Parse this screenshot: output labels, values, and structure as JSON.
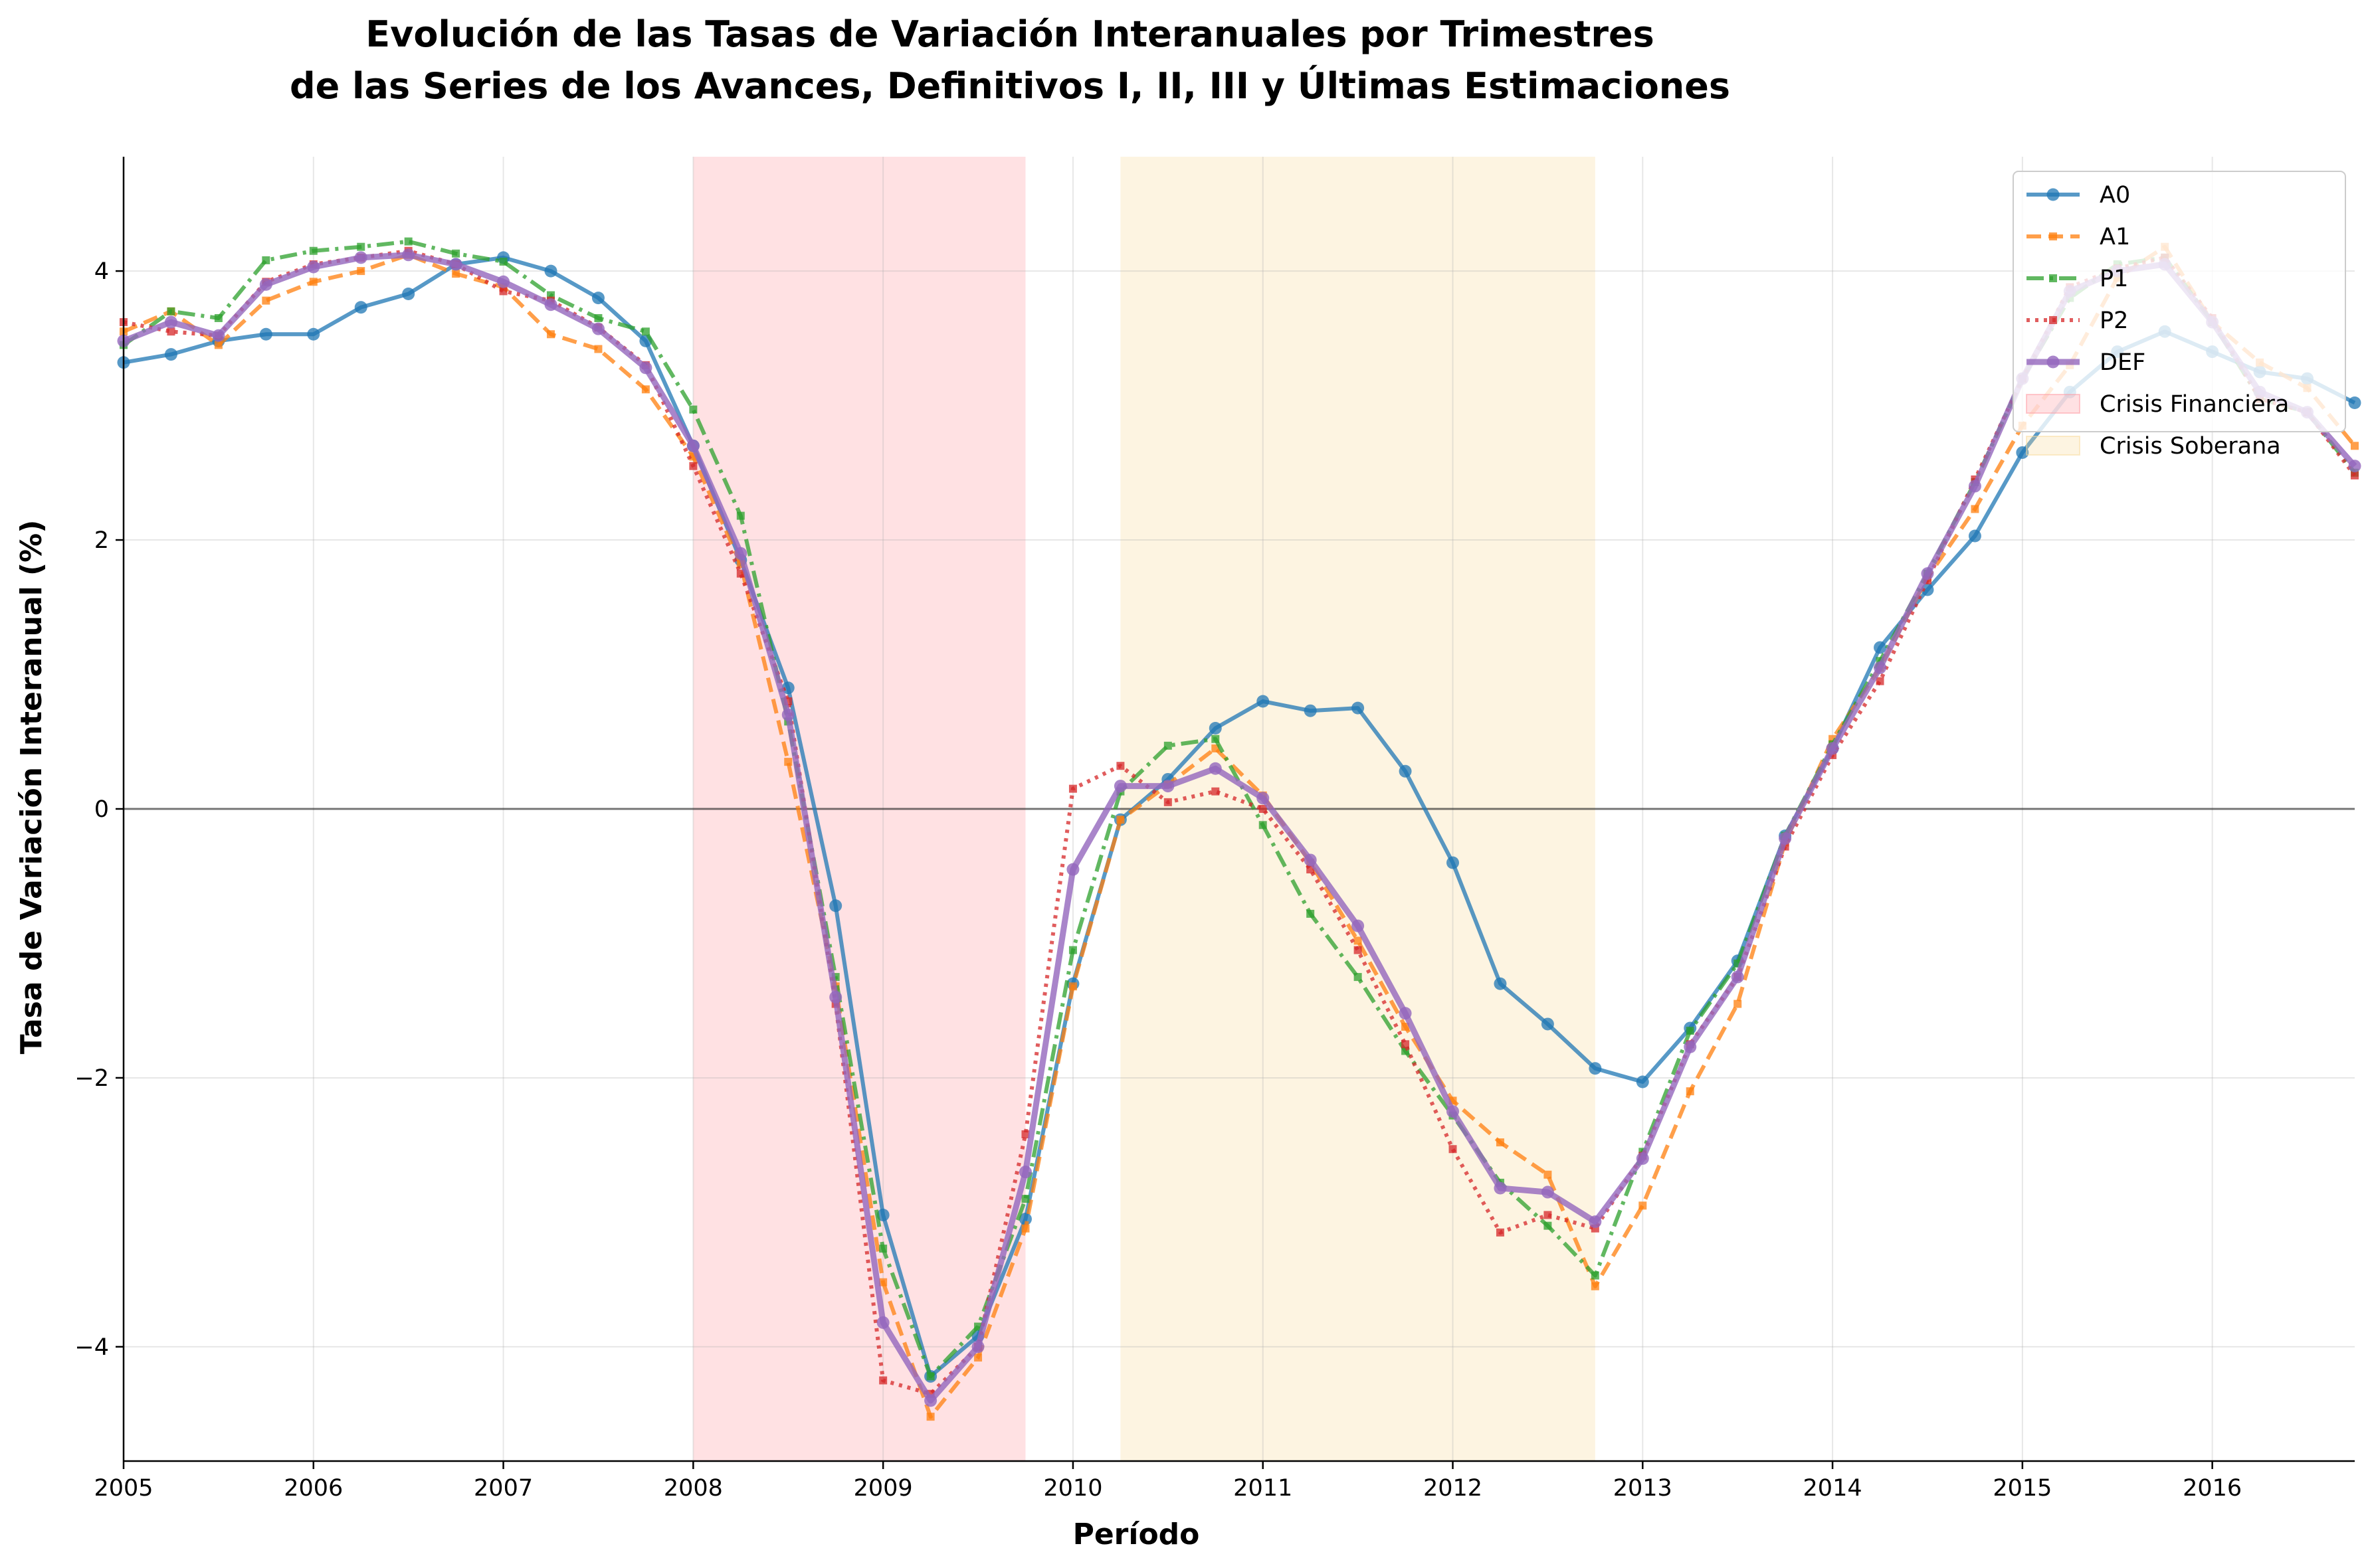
{
  "chart_data": {
    "type": "line",
    "title": "Evolución de las Tasas de Variación Interanuales por Trimestres\nde las Series de los Avances, Definitivos I, II, III y Últimas Estimaciones",
    "xlabel": "Período",
    "ylabel": "Tasa de Variación Interanual (%)",
    "xlim": [
      2005.0,
      2016.75
    ],
    "ylim": [
      -4.85,
      4.85
    ],
    "x_ticks": [
      "2005",
      "2006",
      "2007",
      "2008",
      "2009",
      "2010",
      "2011",
      "2012",
      "2013",
      "2014",
      "2015",
      "2016"
    ],
    "y_ticks": [
      4,
      2,
      0,
      -2,
      -4
    ],
    "y_tick_labels": [
      "4",
      "2",
      "0",
      "−2",
      "−4"
    ],
    "grid": true,
    "legend_position": "top-right",
    "reference_line": 0,
    "x": [
      2005.0,
      2005.25,
      2005.5,
      2005.75,
      2006.0,
      2006.25,
      2006.5,
      2006.75,
      2007.0,
      2007.25,
      2007.5,
      2007.75,
      2008.0,
      2008.25,
      2008.5,
      2008.75,
      2009.0,
      2009.25,
      2009.5,
      2009.75,
      2010.0,
      2010.25,
      2010.5,
      2010.75,
      2011.0,
      2011.25,
      2011.5,
      2011.75,
      2012.0,
      2012.25,
      2012.5,
      2012.75,
      2013.0,
      2013.25,
      2013.5,
      2013.75,
      2014.0,
      2014.25,
      2014.5,
      2014.75,
      2015.0,
      2015.25,
      2015.5,
      2015.75,
      2016.0,
      2016.25,
      2016.5,
      2016.75
    ],
    "series": [
      {
        "name": "A0",
        "color": "#1f77b4",
        "dash": "",
        "marker": "circle",
        "width": 6,
        "opacity": 0.75,
        "values": [
          3.32,
          3.38,
          3.48,
          3.53,
          3.53,
          3.73,
          3.83,
          4.05,
          4.1,
          4.0,
          3.8,
          3.48,
          2.7,
          1.85,
          0.9,
          -0.72,
          -3.02,
          -4.22,
          -3.92,
          -3.05,
          -1.3,
          -0.08,
          0.22,
          0.6,
          0.8,
          0.73,
          0.75,
          0.28,
          -0.4,
          -1.3,
          -1.6,
          -1.93,
          -2.03,
          -1.63,
          -1.13,
          -0.2,
          0.45,
          1.2,
          1.63,
          2.03,
          2.65,
          3.1,
          3.4,
          3.55,
          3.4,
          3.25,
          3.2,
          3.02
        ]
      },
      {
        "name": "A1",
        "color": "#ff7f0e",
        "dash": "22,11",
        "marker": "square",
        "width": 6,
        "opacity": 0.75,
        "values": [
          3.55,
          3.7,
          3.45,
          3.78,
          3.92,
          4.0,
          4.12,
          3.98,
          3.88,
          3.53,
          3.42,
          3.12,
          2.62,
          1.82,
          0.35,
          -1.32,
          -3.52,
          -4.52,
          -4.08,
          -3.12,
          -1.32,
          -0.08,
          0.18,
          0.45,
          0.1,
          -0.4,
          -0.98,
          -1.62,
          -2.17,
          -2.48,
          -2.72,
          -3.55,
          -2.95,
          -2.1,
          -1.45,
          -0.25,
          0.52,
          1.05,
          1.72,
          2.23,
          2.85,
          3.3,
          3.95,
          4.18,
          3.62,
          3.32,
          3.13,
          2.7
        ]
      },
      {
        "name": "P1",
        "color": "#2ca02c",
        "dash": "26,9,5,9",
        "marker": "square",
        "width": 6,
        "opacity": 0.75,
        "values": [
          3.45,
          3.7,
          3.65,
          4.08,
          4.15,
          4.18,
          4.22,
          4.13,
          4.07,
          3.82,
          3.65,
          3.55,
          2.97,
          2.18,
          0.65,
          -1.25,
          -3.27,
          -4.22,
          -3.85,
          -2.9,
          -1.05,
          0.13,
          0.47,
          0.52,
          -0.12,
          -0.78,
          -1.25,
          -1.8,
          -2.28,
          -2.78,
          -3.1,
          -3.47,
          -2.55,
          -1.65,
          -1.15,
          -0.2,
          0.48,
          1.1,
          1.75,
          2.43,
          3.2,
          3.8,
          4.05,
          4.1,
          3.62,
          3.05,
          2.95,
          2.5
        ]
      },
      {
        "name": "P2",
        "color": "#d62728",
        "dash": "5,8",
        "marker": "square",
        "width": 6,
        "opacity": 0.75,
        "values": [
          3.62,
          3.55,
          3.52,
          3.92,
          4.05,
          4.1,
          4.15,
          4.05,
          3.85,
          3.78,
          3.58,
          3.3,
          2.55,
          1.75,
          0.8,
          -1.45,
          -4.25,
          -4.35,
          -4.0,
          -2.42,
          0.15,
          0.32,
          0.05,
          0.13,
          0.0,
          -0.45,
          -1.05,
          -1.75,
          -2.53,
          -3.15,
          -3.02,
          -3.12,
          -2.58,
          -1.75,
          -1.25,
          -0.28,
          0.4,
          0.95,
          1.7,
          2.45,
          3.2,
          3.88,
          4.02,
          4.1,
          3.65,
          3.05,
          2.95,
          2.48
        ]
      },
      {
        "name": "DEF",
        "color": "#9467bd",
        "dash": "",
        "marker": "circle",
        "width": 9,
        "opacity": 0.8,
        "values": [
          3.48,
          3.62,
          3.52,
          3.9,
          4.03,
          4.1,
          4.12,
          4.05,
          3.92,
          3.75,
          3.57,
          3.28,
          2.7,
          1.9,
          0.7,
          -1.4,
          -3.82,
          -4.4,
          -4.0,
          -2.7,
          -0.45,
          0.17,
          0.17,
          0.3,
          0.08,
          -0.38,
          -0.87,
          -1.52,
          -2.25,
          -2.82,
          -2.85,
          -3.07,
          -2.6,
          -1.77,
          -1.25,
          -0.22,
          0.45,
          1.05,
          1.75,
          2.4,
          3.2,
          3.85,
          4.0,
          4.05,
          3.62,
          3.1,
          2.95,
          2.55
        ]
      }
    ],
    "shaded_regions": [
      {
        "name": "Crisis Financiera",
        "from": 2008.0,
        "to": 2009.75,
        "color": "#ff9aa2"
      },
      {
        "name": "Crisis Soberana",
        "from": 2010.25,
        "to": 2012.75,
        "color": "#f9d99a"
      }
    ],
    "legend_entries": [
      "A0",
      "A1",
      "P1",
      "P2",
      "DEF",
      "Crisis Financiera",
      "Crisis Soberana"
    ]
  }
}
